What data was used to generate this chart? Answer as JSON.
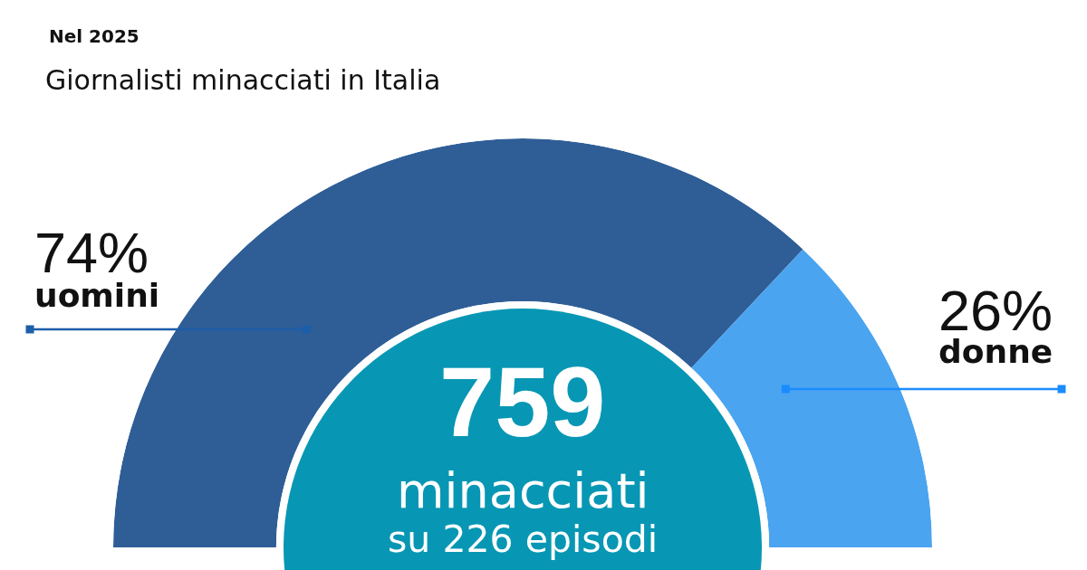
{
  "chart_data": {
    "type": "donut",
    "title": "Giornalisti minacciati in Italia",
    "subtitle": "Nel 2025",
    "categories": [
      "uomini",
      "donne"
    ],
    "values": [
      74,
      26
    ],
    "colors": [
      "#2f5e97",
      "#4ba4ef"
    ],
    "value_labels": [
      "74%",
      "26%"
    ],
    "annotations": [
      "759",
      "minacciati",
      "su 226 episodi"
    ]
  }
}
